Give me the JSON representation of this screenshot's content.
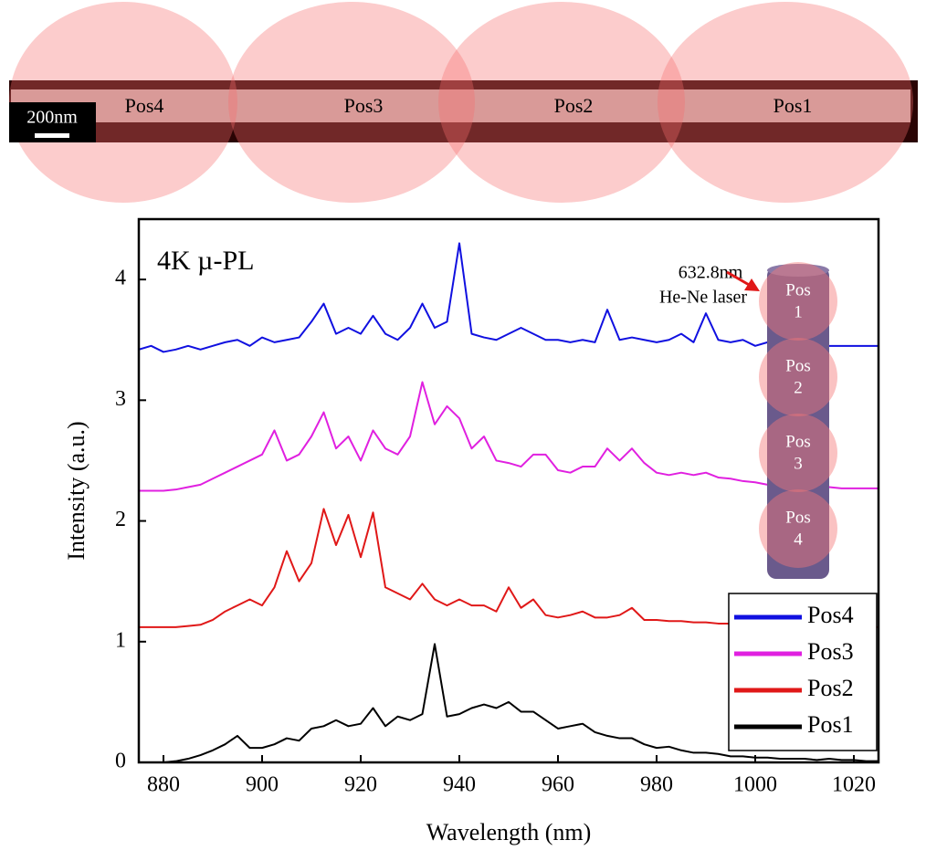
{
  "image": {
    "scale_bar": "200nm",
    "labels": [
      "Pos4",
      "Pos3",
      "Pos2",
      "Pos1"
    ]
  },
  "chart_data": {
    "type": "line",
    "annotation": "4K µ-PL",
    "x_label": "Wavelength (nm)",
    "y_label": "Intensity (a.u.)",
    "x": [
      875,
      877.5,
      880,
      882.5,
      885,
      887.5,
      890,
      892.5,
      895,
      897.5,
      900,
      902.5,
      905,
      907.5,
      910,
      912.5,
      915,
      917.5,
      920,
      922.5,
      925,
      927.5,
      930,
      932.5,
      935,
      937.5,
      940,
      942.5,
      945,
      947.5,
      950,
      952.5,
      955,
      957.5,
      960,
      962.5,
      965,
      967.5,
      970,
      972.5,
      975,
      977.5,
      980,
      982.5,
      985,
      987.5,
      990,
      992.5,
      995,
      997.5,
      1000,
      1002.5,
      1005,
      1007.5,
      1010,
      1012.5,
      1015,
      1017.5,
      1020,
      1022.5,
      1025
    ],
    "series": [
      {
        "name": "Pos4",
        "color": "#1010e0",
        "values": [
          3.42,
          3.45,
          3.4,
          3.42,
          3.45,
          3.42,
          3.45,
          3.48,
          3.5,
          3.45,
          3.52,
          3.48,
          3.5,
          3.52,
          3.65,
          3.8,
          3.55,
          3.6,
          3.55,
          3.7,
          3.55,
          3.5,
          3.6,
          3.8,
          3.6,
          3.65,
          4.3,
          3.55,
          3.52,
          3.5,
          3.55,
          3.6,
          3.55,
          3.5,
          3.5,
          3.48,
          3.5,
          3.48,
          3.75,
          3.5,
          3.52,
          3.5,
          3.48,
          3.5,
          3.55,
          3.48,
          3.72,
          3.5,
          3.48,
          3.5,
          3.45,
          3.48,
          3.45,
          3.47,
          3.45,
          3.45,
          3.45,
          3.45,
          3.45,
          3.45,
          3.45
        ]
      },
      {
        "name": "Pos3",
        "color": "#e020e0",
        "values": [
          2.25,
          2.25,
          2.25,
          2.26,
          2.28,
          2.3,
          2.35,
          2.4,
          2.45,
          2.5,
          2.55,
          2.75,
          2.5,
          2.55,
          2.7,
          2.9,
          2.6,
          2.7,
          2.5,
          2.75,
          2.6,
          2.55,
          2.7,
          3.15,
          2.8,
          2.95,
          2.85,
          2.6,
          2.7,
          2.5,
          2.48,
          2.45,
          2.55,
          2.55,
          2.42,
          2.4,
          2.45,
          2.45,
          2.6,
          2.5,
          2.6,
          2.48,
          2.4,
          2.38,
          2.4,
          2.38,
          2.4,
          2.36,
          2.35,
          2.33,
          2.32,
          2.3,
          2.3,
          2.3,
          2.29,
          2.28,
          2.28,
          2.27,
          2.27,
          2.27,
          2.27
        ]
      },
      {
        "name": "Pos2",
        "color": "#e01818",
        "values": [
          1.12,
          1.12,
          1.12,
          1.12,
          1.13,
          1.14,
          1.18,
          1.25,
          1.3,
          1.35,
          1.3,
          1.45,
          1.75,
          1.5,
          1.65,
          2.1,
          1.8,
          2.05,
          1.7,
          2.07,
          1.45,
          1.4,
          1.35,
          1.48,
          1.35,
          1.3,
          1.35,
          1.3,
          1.3,
          1.25,
          1.45,
          1.28,
          1.35,
          1.22,
          1.2,
          1.22,
          1.25,
          1.2,
          1.2,
          1.22,
          1.28,
          1.18,
          1.18,
          1.17,
          1.17,
          1.16,
          1.16,
          1.15,
          1.15,
          1.14,
          1.14,
          1.13,
          1.13,
          1.13,
          1.12,
          1.12,
          1.12,
          1.12,
          1.12,
          1.12,
          1.12
        ]
      },
      {
        "name": "Pos1",
        "color": "#000000",
        "values": [
          0,
          0,
          0,
          0.01,
          0.03,
          0.06,
          0.1,
          0.15,
          0.22,
          0.12,
          0.12,
          0.15,
          0.2,
          0.18,
          0.28,
          0.3,
          0.35,
          0.3,
          0.32,
          0.45,
          0.3,
          0.38,
          0.35,
          0.4,
          0.98,
          0.38,
          0.4,
          0.45,
          0.48,
          0.45,
          0.5,
          0.42,
          0.42,
          0.35,
          0.28,
          0.3,
          0.32,
          0.25,
          0.22,
          0.2,
          0.2,
          0.15,
          0.12,
          0.13,
          0.1,
          0.08,
          0.08,
          0.07,
          0.05,
          0.05,
          0.04,
          0.04,
          0.03,
          0.03,
          0.03,
          0.02,
          0.03,
          0.02,
          0.02,
          0.01,
          0.01
        ]
      }
    ],
    "xlim": [
      875,
      1025
    ],
    "xticks": [
      880,
      900,
      920,
      940,
      960,
      980,
      1000,
      1020
    ],
    "ylim": [
      0,
      4.5
    ],
    "yticks": [
      0,
      1,
      2,
      3,
      4
    ],
    "grid": false,
    "legend": "lower right",
    "inset": {
      "laser": [
        "632.8nm",
        "He-Ne laser"
      ],
      "positions": [
        [
          "Pos",
          "1"
        ],
        [
          "Pos",
          "2"
        ],
        [
          "Pos",
          "3"
        ],
        [
          "Pos",
          "4"
        ]
      ]
    }
  }
}
